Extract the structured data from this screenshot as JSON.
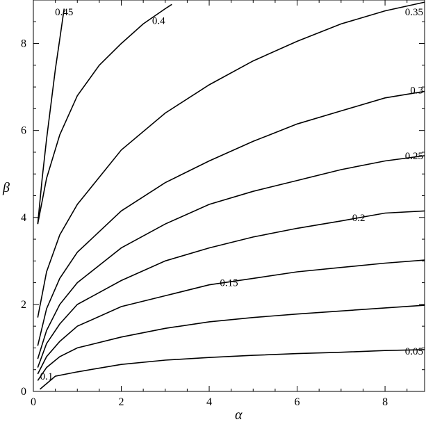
{
  "chart_data": {
    "type": "line",
    "xlabel": "α",
    "ylabel": "β",
    "xlim": [
      0,
      8.9
    ],
    "ylim": [
      0,
      9.0
    ],
    "x_ticks": [
      0,
      2,
      4,
      6,
      8
    ],
    "y_ticks": [
      0,
      2,
      4,
      6,
      8
    ],
    "series": [
      {
        "name": "0.05",
        "x": [
          0.15,
          0.5,
          1,
          2,
          3,
          4,
          5,
          6,
          7,
          8,
          8.9
        ],
        "y": [
          0.05,
          0.35,
          0.45,
          0.62,
          0.72,
          0.78,
          0.83,
          0.87,
          0.9,
          0.94,
          0.96
        ]
      },
      {
        "name": "0.1",
        "x": [
          0.1,
          0.3,
          0.6,
          1,
          2,
          3,
          4,
          5,
          6,
          7,
          8,
          8.9
        ],
        "y": [
          0.25,
          0.55,
          0.8,
          1.0,
          1.25,
          1.45,
          1.6,
          1.7,
          1.78,
          1.85,
          1.92,
          1.98
        ]
      },
      {
        "name": "0.15",
        "x": [
          0.1,
          0.3,
          0.6,
          1,
          2,
          3,
          4,
          5,
          6,
          7,
          8,
          8.9
        ],
        "y": [
          0.4,
          0.8,
          1.15,
          1.5,
          1.95,
          2.2,
          2.45,
          2.6,
          2.75,
          2.85,
          2.95,
          3.02
        ]
      },
      {
        "name": "0.2",
        "x": [
          0.1,
          0.3,
          0.6,
          1,
          2,
          3,
          4,
          5,
          6,
          7,
          8,
          8.9
        ],
        "y": [
          0.55,
          1.1,
          1.55,
          2.0,
          2.55,
          3.0,
          3.3,
          3.55,
          3.75,
          3.92,
          4.1,
          4.15
        ]
      },
      {
        "name": "0.25",
        "x": [
          0.1,
          0.3,
          0.6,
          1,
          2,
          3,
          4,
          5,
          6,
          7,
          8,
          8.9
        ],
        "y": [
          0.75,
          1.4,
          2.0,
          2.5,
          3.3,
          3.85,
          4.3,
          4.6,
          4.85,
          5.1,
          5.3,
          5.42
        ]
      },
      {
        "name": "0.3",
        "x": [
          0.1,
          0.3,
          0.6,
          1,
          2,
          3,
          4,
          5,
          6,
          7,
          8,
          8.9
        ],
        "y": [
          1.05,
          1.9,
          2.6,
          3.2,
          4.15,
          4.8,
          5.3,
          5.75,
          6.15,
          6.45,
          6.75,
          6.9
        ]
      },
      {
        "name": "0.35",
        "x": [
          0.1,
          0.3,
          0.6,
          1,
          2,
          3,
          4,
          5,
          6,
          7,
          8,
          8.9
        ],
        "y": [
          1.7,
          2.75,
          3.6,
          4.3,
          5.55,
          6.4,
          7.05,
          7.6,
          8.05,
          8.45,
          8.75,
          8.95
        ]
      },
      {
        "name": "0.4",
        "x": [
          0.1,
          0.3,
          0.6,
          1,
          1.5,
          2,
          2.5,
          3,
          3.15
        ],
        "y": [
          3.85,
          4.9,
          5.9,
          6.8,
          7.5,
          8.0,
          8.45,
          8.8,
          8.9
        ]
      },
      {
        "name": "0.45",
        "x": [
          0.1,
          0.2,
          0.3,
          0.4,
          0.5,
          0.6,
          0.7
        ],
        "y": [
          3.85,
          4.9,
          5.8,
          6.6,
          7.4,
          8.1,
          8.8
        ]
      }
    ],
    "contour_labels": [
      {
        "text": "0.45",
        "x": 0.7,
        "y": 8.73
      },
      {
        "text": "0.4",
        "x": 2.85,
        "y": 8.53
      },
      {
        "text": "0.35",
        "x": 8.55,
        "y": 8.73
      },
      {
        "text": "0.3",
        "x": 8.9,
        "y": 6.93
      },
      {
        "text": "0.25",
        "x": 8.75,
        "y": 5.42
      },
      {
        "text": "0.2",
        "x": 7.4,
        "y": 4.0
      },
      {
        "text": "0.15",
        "x": 4.45,
        "y": 2.5
      },
      {
        "text": "0.1",
        "x": 0.3,
        "y": 0.35
      },
      {
        "text": "0.05",
        "x": 8.9,
        "y": 0.93
      }
    ]
  }
}
